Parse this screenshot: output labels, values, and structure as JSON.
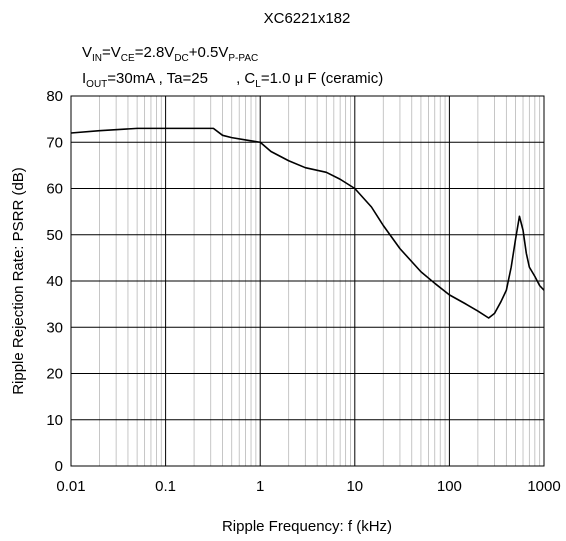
{
  "chart_data": {
    "type": "line",
    "title": "XC6221x182",
    "subtitle_line1": {
      "a": "V",
      "a_sub": "IN",
      "b": "=V",
      "b_sub": "CE",
      "c": "=2.8V",
      "c_sub": "DC",
      "d": "+0.5V",
      "d_sub": "P-PAC"
    },
    "subtitle_line2": {
      "a": "I",
      "a_sub": "OUT",
      "b": "=30mA , Ta=25",
      "c": " , C",
      "c_sub": "L",
      "d": "=1.0 μ F (ceramic)"
    },
    "xlabel": "Ripple Frequency: f (kHz)",
    "ylabel": "Ripple Rejection Rate: PSRR (dB)",
    "x_scale": "log",
    "xlim": [
      0.01,
      1000
    ],
    "ylim": [
      0,
      80
    ],
    "x_ticks": [
      0.01,
      0.1,
      1,
      10,
      100,
      1000
    ],
    "x_tick_labels": [
      "0.01",
      "0.1",
      "1",
      "10",
      "100",
      "1000"
    ],
    "y_ticks": [
      0,
      10,
      20,
      30,
      40,
      50,
      60,
      70,
      80
    ],
    "y_tick_labels": [
      "0",
      "10",
      "20",
      "30",
      "40",
      "50",
      "60",
      "70",
      "80"
    ],
    "grid": true,
    "series": [
      {
        "color": "#000000",
        "x": [
          0.01,
          0.02,
          0.05,
          0.1,
          0.2,
          0.32,
          0.4,
          0.5,
          0.7,
          1.0,
          1.3,
          2.0,
          3.0,
          5.0,
          7.0,
          10,
          15,
          20,
          30,
          50,
          70,
          100,
          150,
          200,
          260,
          300,
          350,
          400,
          450,
          500,
          550,
          600,
          650,
          700,
          800,
          900,
          1000
        ],
        "y": [
          72,
          72.5,
          73,
          73,
          73,
          73,
          71.5,
          71,
          70.5,
          70,
          68,
          66,
          64.5,
          63.5,
          62,
          60,
          56,
          52,
          47,
          42,
          39.5,
          37,
          35,
          33.5,
          32,
          33,
          35.5,
          38,
          43,
          49,
          54,
          51,
          46,
          43,
          41,
          39,
          38
        ]
      }
    ]
  }
}
